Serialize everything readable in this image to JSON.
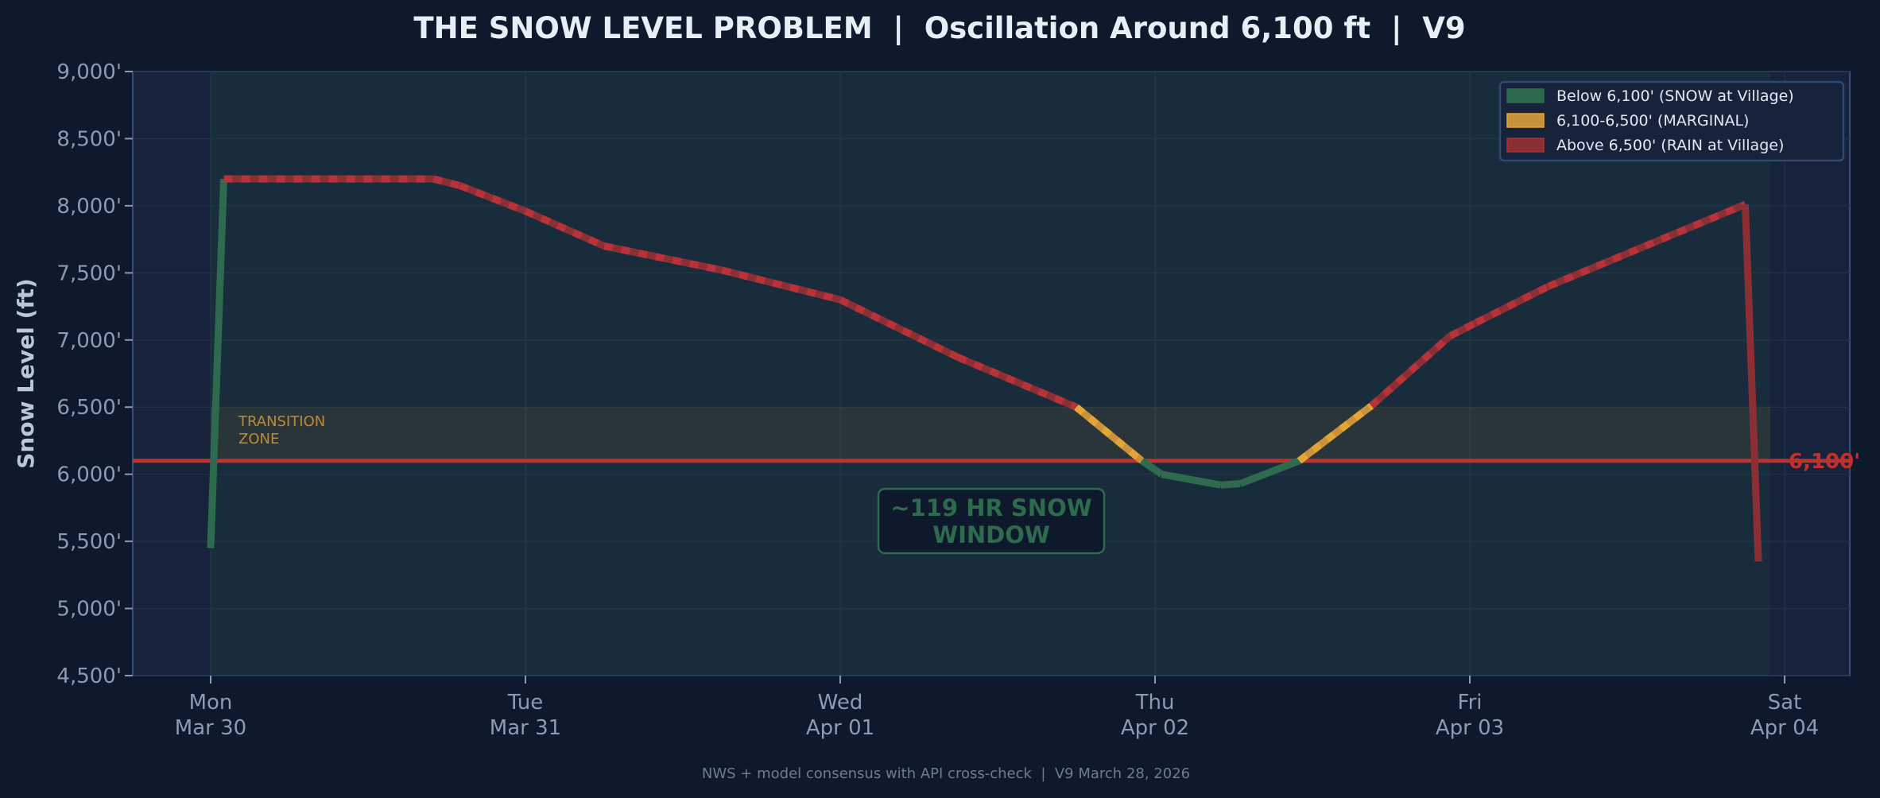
{
  "chart_data": {
    "type": "line",
    "title": "THE SNOW LEVEL PROBLEM  |  Oscillation Around 6,100 ft  |  V9",
    "ylabel": "Snow Level (ft)",
    "xlabel": "",
    "ylim": [
      4500,
      9000
    ],
    "yticks": [
      4500,
      5000,
      5500,
      6000,
      6500,
      7000,
      7500,
      8000,
      8500,
      9000
    ],
    "ytick_labels": [
      "4,500'",
      "5,000'",
      "5,500'",
      "6,000'",
      "6,500'",
      "7,000'",
      "7,500'",
      "8,000'",
      "8,500'",
      "9,000'"
    ],
    "xticks": [
      {
        "day": "Mon",
        "date": "Mar 30",
        "datetime": "2026-03-30 00:00"
      },
      {
        "day": "Tue",
        "date": "Mar 31",
        "datetime": "2026-03-31 00:00"
      },
      {
        "day": "Wed",
        "date": "Apr 01",
        "datetime": "2026-04-01 00:00"
      },
      {
        "day": "Thu",
        "date": "Apr 02",
        "datetime": "2026-04-02 00:00"
      },
      {
        "day": "Fri",
        "date": "Apr 03",
        "datetime": "2026-04-03 00:00"
      },
      {
        "day": "Sat",
        "date": "Apr 04",
        "datetime": "2026-04-04 00:00"
      }
    ],
    "xlim": [
      "2026-03-29 18:00",
      "2026-04-04 20:00"
    ],
    "grid": true,
    "legend_position": "top-right",
    "threshold": {
      "value": 6100,
      "label": "6,100'",
      "color": "#c0302f"
    },
    "transition_zone": {
      "range": [
        6100,
        6500
      ],
      "label_line1": "TRANSITION",
      "label_line2": "ZONE",
      "color": "#c08a35"
    },
    "zones": {
      "snow": {
        "label": "Below 6,100' (SNOW at Village)",
        "color": "#2e6b4e"
      },
      "marginal": {
        "label": "6,100-6,500' (MARGINAL)",
        "color": "#c8913a"
      },
      "rain": {
        "label": "Above 6,500' (RAIN at Village)",
        "color": "#8b2f35"
      }
    },
    "series": [
      {
        "points": [
          {
            "t": "2026-03-30 00:00",
            "v": 5450,
            "zone": "snow"
          },
          {
            "t": "2026-03-30 01:00",
            "v": 8200,
            "zone": "rain"
          },
          {
            "t": "2026-03-30 17:00",
            "v": 8200,
            "zone": "rain"
          },
          {
            "t": "2026-03-30 19:00",
            "v": 8150,
            "zone": "rain"
          },
          {
            "t": "2026-03-31 00:00",
            "v": 7960,
            "zone": "rain"
          },
          {
            "t": "2026-03-31 06:00",
            "v": 7700,
            "zone": "rain"
          },
          {
            "t": "2026-03-31 15:00",
            "v": 7520,
            "zone": "rain"
          },
          {
            "t": "2026-04-01 00:00",
            "v": 7300,
            "zone": "rain"
          },
          {
            "t": "2026-04-01 09:00",
            "v": 6870,
            "zone": "rain"
          },
          {
            "t": "2026-04-01 18:00",
            "v": 6500,
            "zone": "marginal"
          },
          {
            "t": "2026-04-01 23:00",
            "v": 6100,
            "zone": "snow"
          },
          {
            "t": "2026-04-02 00:30",
            "v": 6000,
            "zone": "snow"
          },
          {
            "t": "2026-04-02 05:00",
            "v": 5920,
            "zone": "snow"
          },
          {
            "t": "2026-04-02 06:30",
            "v": 5930,
            "zone": "snow"
          },
          {
            "t": "2026-04-02 11:00",
            "v": 6100,
            "zone": "marginal"
          },
          {
            "t": "2026-04-02 16:30",
            "v": 6510,
            "zone": "rain"
          },
          {
            "t": "2026-04-02 22:30",
            "v": 7030,
            "zone": "rain"
          },
          {
            "t": "2026-04-03 00:30",
            "v": 7130,
            "zone": "rain"
          },
          {
            "t": "2026-04-03 06:00",
            "v": 7400,
            "zone": "rain"
          },
          {
            "t": "2026-04-03 21:00",
            "v": 8010,
            "zone": "rain"
          },
          {
            "t": "2026-04-03 22:00",
            "v": 5350,
            "zone": "rain"
          }
        ]
      }
    ],
    "annotation": {
      "line1": "~119 HR SNOW",
      "line2": "WINDOW",
      "color": "#2e6b4e"
    },
    "footer": "NWS + model consensus with API cross-check  |  V9 March 28, 2026"
  }
}
